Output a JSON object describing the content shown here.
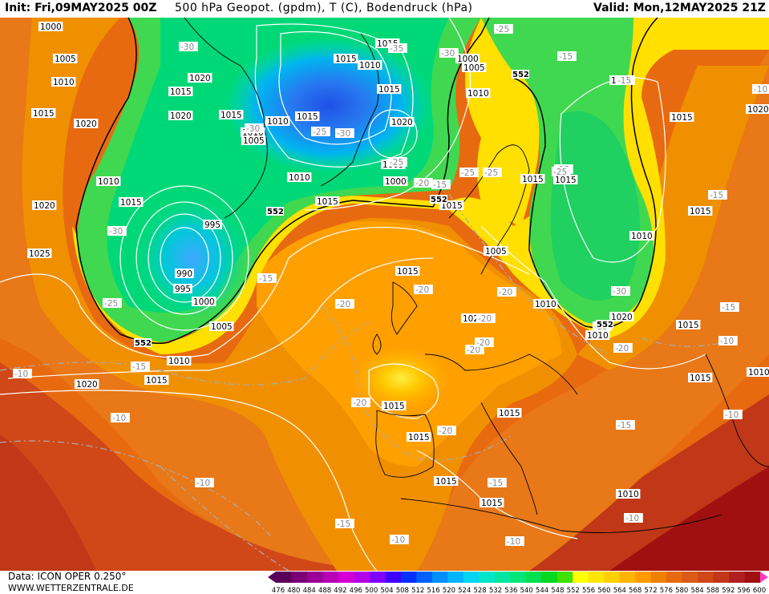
{
  "header": {
    "init": "Init: Fri,09MAY2025 00Z",
    "title": "500 hPa Geopot. (gpdm), T (C), Bodendruck (hPa)",
    "valid": "Valid: Mon,12MAY2025 21Z"
  },
  "footer": {
    "source": "Data: ICON OPER 0.250°",
    "site": "WWW.WETTERZENTRALE.DE"
  },
  "colorbar": {
    "ticks": [
      "476",
      "480",
      "484",
      "488",
      "492",
      "496",
      "500",
      "504",
      "508",
      "512",
      "516",
      "520",
      "524",
      "528",
      "532",
      "536",
      "540",
      "544",
      "548",
      "552",
      "556",
      "560",
      "564",
      "568",
      "572",
      "576",
      "580",
      "584",
      "588",
      "592",
      "596",
      "600"
    ],
    "colors": [
      "#5a005a",
      "#7a0078",
      "#9a0096",
      "#b800b4",
      "#d400d4",
      "#b400e6",
      "#8000ff",
      "#4000ff",
      "#0030ff",
      "#0060ff",
      "#0090ff",
      "#00b4ff",
      "#00d4f0",
      "#00e6c8",
      "#00e6a0",
      "#00e678",
      "#00e050",
      "#00d820",
      "#40e000",
      "#ffff00",
      "#ffe600",
      "#ffd000",
      "#ffb400",
      "#ff9a00",
      "#f08000",
      "#e86a10",
      "#dc5a18",
      "#d04818",
      "#c03818",
      "#b02020",
      "#a01010",
      "#ff40c0"
    ],
    "unit": "gpdm"
  },
  "map_labels": {
    "isobars": [
      "1000",
      "1005",
      "1010",
      "1015",
      "1020",
      "1025",
      "995",
      "990"
    ],
    "isotherms": [
      "-10",
      "-15",
      "-20",
      "-25",
      "-30",
      "-35"
    ],
    "contour_552": "552",
    "pressure_labels": [
      {
        "t": "1000"
      },
      {
        "t": "1005"
      },
      {
        "t": "1010"
      },
      {
        "t": "1015"
      },
      {
        "t": "1020"
      },
      {
        "t": "1015"
      },
      {
        "t": "1010"
      },
      {
        "t": "1015"
      },
      {
        "t": "1020"
      },
      {
        "t": "1015"
      },
      {
        "t": "1010"
      },
      {
        "t": "1005"
      },
      {
        "t": "1000"
      },
      {
        "t": "995"
      },
      {
        "t": "990"
      },
      {
        "t": "995"
      },
      {
        "t": "1000"
      },
      {
        "t": "1005"
      },
      {
        "t": "1010"
      },
      {
        "t": "1015"
      },
      {
        "t": "1020"
      },
      {
        "t": "1025"
      },
      {
        "t": "1020"
      },
      {
        "t": "1015"
      },
      {
        "t": "1010"
      },
      {
        "t": "1005"
      },
      {
        "t": "1000"
      },
      {
        "t": "1015"
      },
      {
        "t": "1010"
      },
      {
        "t": "1010"
      },
      {
        "t": "1005"
      },
      {
        "t": "1015"
      },
      {
        "t": "1010"
      },
      {
        "t": "1015"
      },
      {
        "t": "1020"
      },
      {
        "t": "1015"
      },
      {
        "t": "1020"
      },
      {
        "t": "1020"
      },
      {
        "t": "1015"
      },
      {
        "t": "1020"
      },
      {
        "t": "1010"
      },
      {
        "t": "1015"
      },
      {
        "t": "1020"
      },
      {
        "t": "1015"
      },
      {
        "t": "1010"
      },
      {
        "t": "1015"
      },
      {
        "t": "1010"
      },
      {
        "t": "1005"
      },
      {
        "t": "1010"
      },
      {
        "t": "1015"
      },
      {
        "t": "1015"
      },
      {
        "t": "1015"
      },
      {
        "t": "1015"
      },
      {
        "t": "1020"
      },
      {
        "t": "1015"
      },
      {
        "t": "1015"
      },
      {
        "t": "1015"
      },
      {
        "t": "1015"
      },
      {
        "t": "1015"
      },
      {
        "t": "1010"
      }
    ],
    "temp_labels": [
      {
        "t": "-30"
      },
      {
        "t": "-35"
      },
      {
        "t": "-30"
      },
      {
        "t": "-25"
      },
      {
        "t": "-30"
      },
      {
        "t": "-25"
      },
      {
        "t": "-10"
      },
      {
        "t": "-30"
      },
      {
        "t": "-25"
      },
      {
        "t": "-30"
      },
      {
        "t": "-25"
      },
      {
        "t": "-20"
      },
      {
        "t": "-25"
      },
      {
        "t": "-25"
      },
      {
        "t": "-25"
      },
      {
        "t": "-15"
      },
      {
        "t": "-15"
      },
      {
        "t": "-15"
      },
      {
        "t": "-15"
      },
      {
        "t": "-20"
      },
      {
        "t": "-20"
      },
      {
        "t": "-20"
      },
      {
        "t": "-20"
      },
      {
        "t": "-20"
      },
      {
        "t": "-20"
      },
      {
        "t": "-20"
      },
      {
        "t": "-20"
      },
      {
        "t": "-30"
      },
      {
        "t": "-25"
      },
      {
        "t": "-20"
      },
      {
        "t": "-15"
      },
      {
        "t": "-15"
      },
      {
        "t": "-10"
      },
      {
        "t": "-10"
      },
      {
        "t": "-10"
      },
      {
        "t": "-15"
      },
      {
        "t": "-15"
      },
      {
        "t": "-10"
      },
      {
        "t": "-10"
      },
      {
        "t": "-10"
      },
      {
        "t": "-25"
      },
      {
        "t": "-10"
      },
      {
        "t": "-15"
      },
      {
        "t": "-10"
      },
      {
        "t": "-15"
      }
    ],
    "geo_labels": [
      "552",
      "552",
      "552",
      "552",
      "552"
    ]
  }
}
